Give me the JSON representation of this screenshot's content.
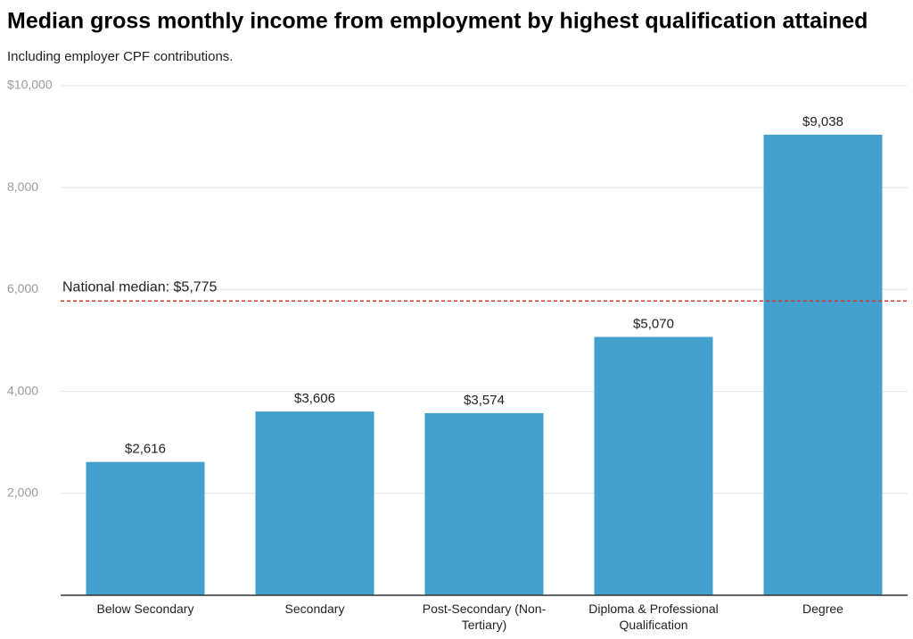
{
  "chart_data": {
    "type": "bar",
    "title": "Median gross monthly income from employment by highest qualification attained",
    "subtitle": "Including employer CPF contributions.",
    "categories": [
      "Below Secondary",
      "Secondary",
      "Post-Secondary (Non-Tertiary)",
      "Diploma & Professional Qualification",
      "Degree"
    ],
    "values": [
      2616,
      3606,
      3574,
      5070,
      9038
    ],
    "value_labels": [
      "$2,616",
      "$3,606",
      "$3,574",
      "$5,070",
      "$9,038"
    ],
    "color": "#439fcb",
    "ylim": [
      0,
      10000
    ],
    "yticks": [
      {
        "value": 2000,
        "label": "2,000"
      },
      {
        "value": 4000,
        "label": "4,000"
      },
      {
        "value": 6000,
        "label": "6,000"
      },
      {
        "value": 8000,
        "label": "8,000"
      },
      {
        "value": 10000,
        "label": "$10,000"
      }
    ],
    "grid": true,
    "reference_line": {
      "value": 5775,
      "label": "National median: $5,775",
      "color": "#d03a2c"
    }
  }
}
